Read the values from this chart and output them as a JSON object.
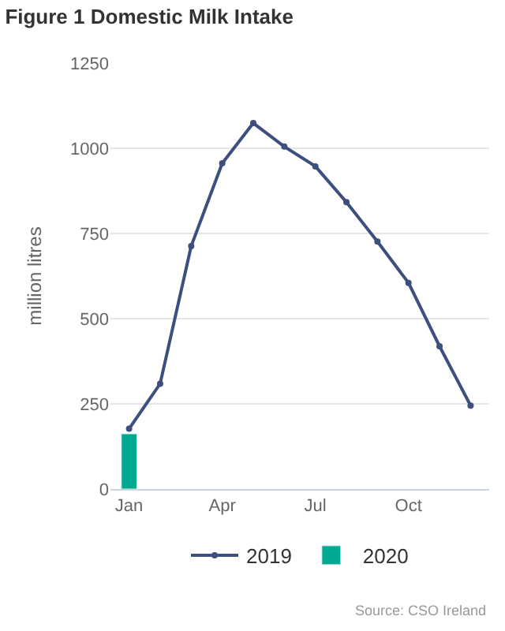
{
  "chart_data": {
    "type": "line",
    "title": "Figure 1 Domestic Milk Intake",
    "ylabel": "million litres",
    "categories": [
      "Jan",
      null,
      null,
      "Apr",
      null,
      null,
      "Jul",
      null,
      null,
      "Oct",
      null,
      null
    ],
    "series": [
      {
        "name": "2019",
        "color": "#3d4f7f",
        "marker": "circle",
        "values": [
          177,
          309,
          713,
          956,
          1074,
          1005,
          947,
          842,
          726,
          605,
          419,
          245
        ]
      },
      {
        "name": "2020",
        "type": "bar",
        "color": "#00a98f",
        "values": [
          162,
          null,
          null,
          null,
          null,
          null,
          null,
          null,
          null,
          null,
          null,
          null
        ]
      }
    ],
    "ylim": [
      0,
      1250
    ],
    "yticks": [
      0,
      250,
      500,
      750,
      1000,
      1250
    ],
    "grid": "y",
    "legend": "bottom",
    "annotations": [
      "Source: CSO Ireland"
    ]
  }
}
